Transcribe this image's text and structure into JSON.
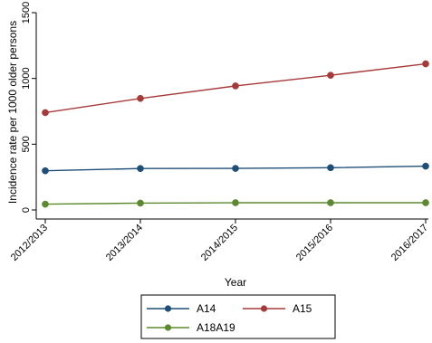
{
  "chart_data": {
    "type": "line",
    "title": "",
    "xlabel": "Year",
    "ylabel": "Incidence rate per 1000 older persons",
    "categories": [
      "2012/2013",
      "2013/2014",
      "2014/2015",
      "2015/2016",
      "2016/2017"
    ],
    "ylim": [
      0,
      1500
    ],
    "yticks": [
      0,
      500,
      1000,
      1500
    ],
    "grid": false,
    "legend_position": "bottom",
    "series": [
      {
        "name": "A14",
        "values": [
          298,
          315,
          316,
          321,
          333
        ],
        "color": "#1f4e79"
      },
      {
        "name": "A15",
        "values": [
          740,
          848,
          943,
          1024,
          1111
        ],
        "color": "#a63a3a"
      },
      {
        "name": "A18A19",
        "values": [
          44,
          52,
          55,
          55,
          55
        ],
        "color": "#5b8a2e"
      }
    ]
  }
}
